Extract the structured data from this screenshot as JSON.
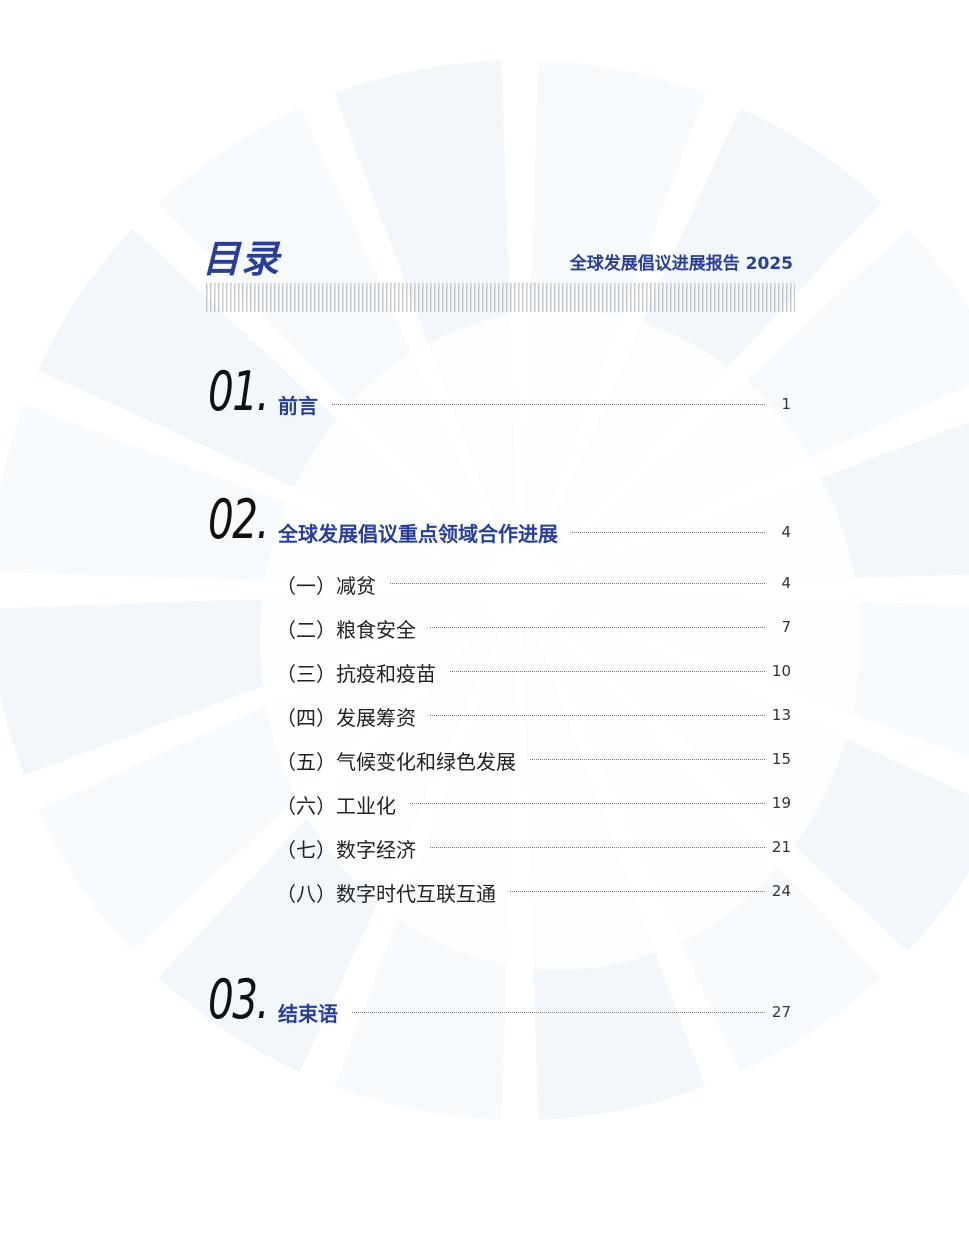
{
  "header": {
    "title": "目录",
    "report_title": "全球发展倡议进展报告 2025"
  },
  "colors": {
    "accent": "#2a3f94",
    "background_wedges": "#f3f8fc"
  },
  "toc": {
    "sections": [
      {
        "number": "01.",
        "title": "前言",
        "page": "1"
      },
      {
        "number": "02.",
        "title": "全球发展倡议重点领域合作进展",
        "page": "4",
        "items": [
          {
            "label": "（一）减贫",
            "page": "4"
          },
          {
            "label": "（二）粮食安全",
            "page": "7"
          },
          {
            "label": "（三）抗疫和疫苗",
            "page": "10"
          },
          {
            "label": "（四）发展筹资",
            "page": "13"
          },
          {
            "label": "（五）气候变化和绿色发展",
            "page": "15"
          },
          {
            "label": "（六）工业化",
            "page": "19"
          },
          {
            "label": "（七）数字经济",
            "page": "21"
          },
          {
            "label": "（八）数字时代互联互通",
            "page": "24"
          }
        ]
      },
      {
        "number": "03.",
        "title": "结束语",
        "page": "27"
      }
    ]
  }
}
